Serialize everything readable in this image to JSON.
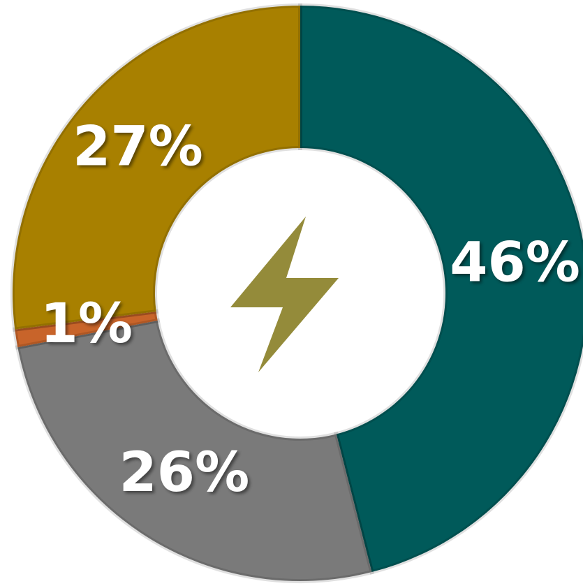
{
  "chart_data": {
    "type": "donut",
    "values": [
      46,
      26,
      1,
      27
    ],
    "value_labels": [
      "46%",
      "26%",
      "1%",
      "27%"
    ],
    "colors": [
      "#005a5a",
      "#7a7a7a",
      "#c8642a",
      "#a88000"
    ]
  }
}
